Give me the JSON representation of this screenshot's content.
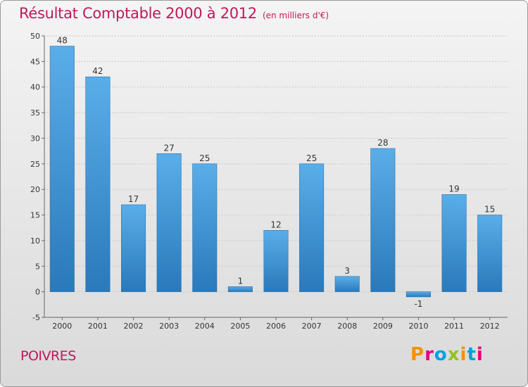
{
  "header": {
    "title": "Résultat Comptable 2000 à 2012",
    "subtitle": "(en milliers d'€)"
  },
  "footer": {
    "commune": "POIVRES",
    "logo_text": "Proxiti"
  },
  "colors": {
    "bar_top": "#5aaee8",
    "bar_bottom": "#2a79bb",
    "title": "#c2185b",
    "logo": [
      "#f39200",
      "#e6007e",
      "#009fe3",
      "#95c11f",
      "#f39200",
      "#009fe3",
      "#e6007e"
    ]
  },
  "chart_data": {
    "type": "bar",
    "title": "Résultat Comptable 2000 à 2012",
    "subtitle": "(en milliers d'€)",
    "categories": [
      "2000",
      "2001",
      "2002",
      "2003",
      "2004",
      "2005",
      "2006",
      "2007",
      "2008",
      "2009",
      "2010",
      "2011",
      "2012"
    ],
    "values": [
      48,
      42,
      17,
      27,
      25,
      1,
      12,
      25,
      3,
      28,
      -1,
      19,
      15
    ],
    "ylim": [
      -5,
      50
    ],
    "yticks": [
      -5,
      0,
      5,
      10,
      15,
      20,
      25,
      30,
      35,
      40,
      45,
      50
    ],
    "grid": true,
    "legend": "none"
  }
}
